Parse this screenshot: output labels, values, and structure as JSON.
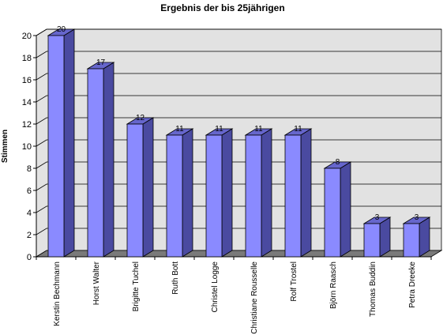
{
  "chart_data": {
    "type": "bar",
    "title": "Ergebnis der bis 25jährigen",
    "xlabel": "",
    "ylabel": "Stimmen",
    "ylim": [
      0,
      20
    ],
    "yticks": [
      0,
      2,
      4,
      6,
      8,
      10,
      12,
      14,
      16,
      18,
      20
    ],
    "grid": true,
    "three_d": true,
    "categories": [
      "Kerstin Bechmann",
      "Horst Walter",
      "Brigitte Tuchel",
      "Ruth Bott",
      "Christel Logge",
      "Christiane Rousselle",
      "Rolf Trostel",
      "Björn Raasch",
      "Thomas Buddin",
      "Petra Dreeke"
    ],
    "values": [
      20,
      17,
      12,
      11,
      11,
      11,
      11,
      8,
      3,
      3
    ],
    "data_labels": [
      "20",
      "17",
      "12",
      "11",
      "11",
      "11",
      "11",
      "8",
      "3",
      "3"
    ],
    "colors": {
      "bar_front": "#8a8aff",
      "bar_top": "#6666cc",
      "bar_side": "#4a4aa0",
      "plot_wall": "#e2e2e2",
      "floor": "#7a7a7a"
    }
  }
}
